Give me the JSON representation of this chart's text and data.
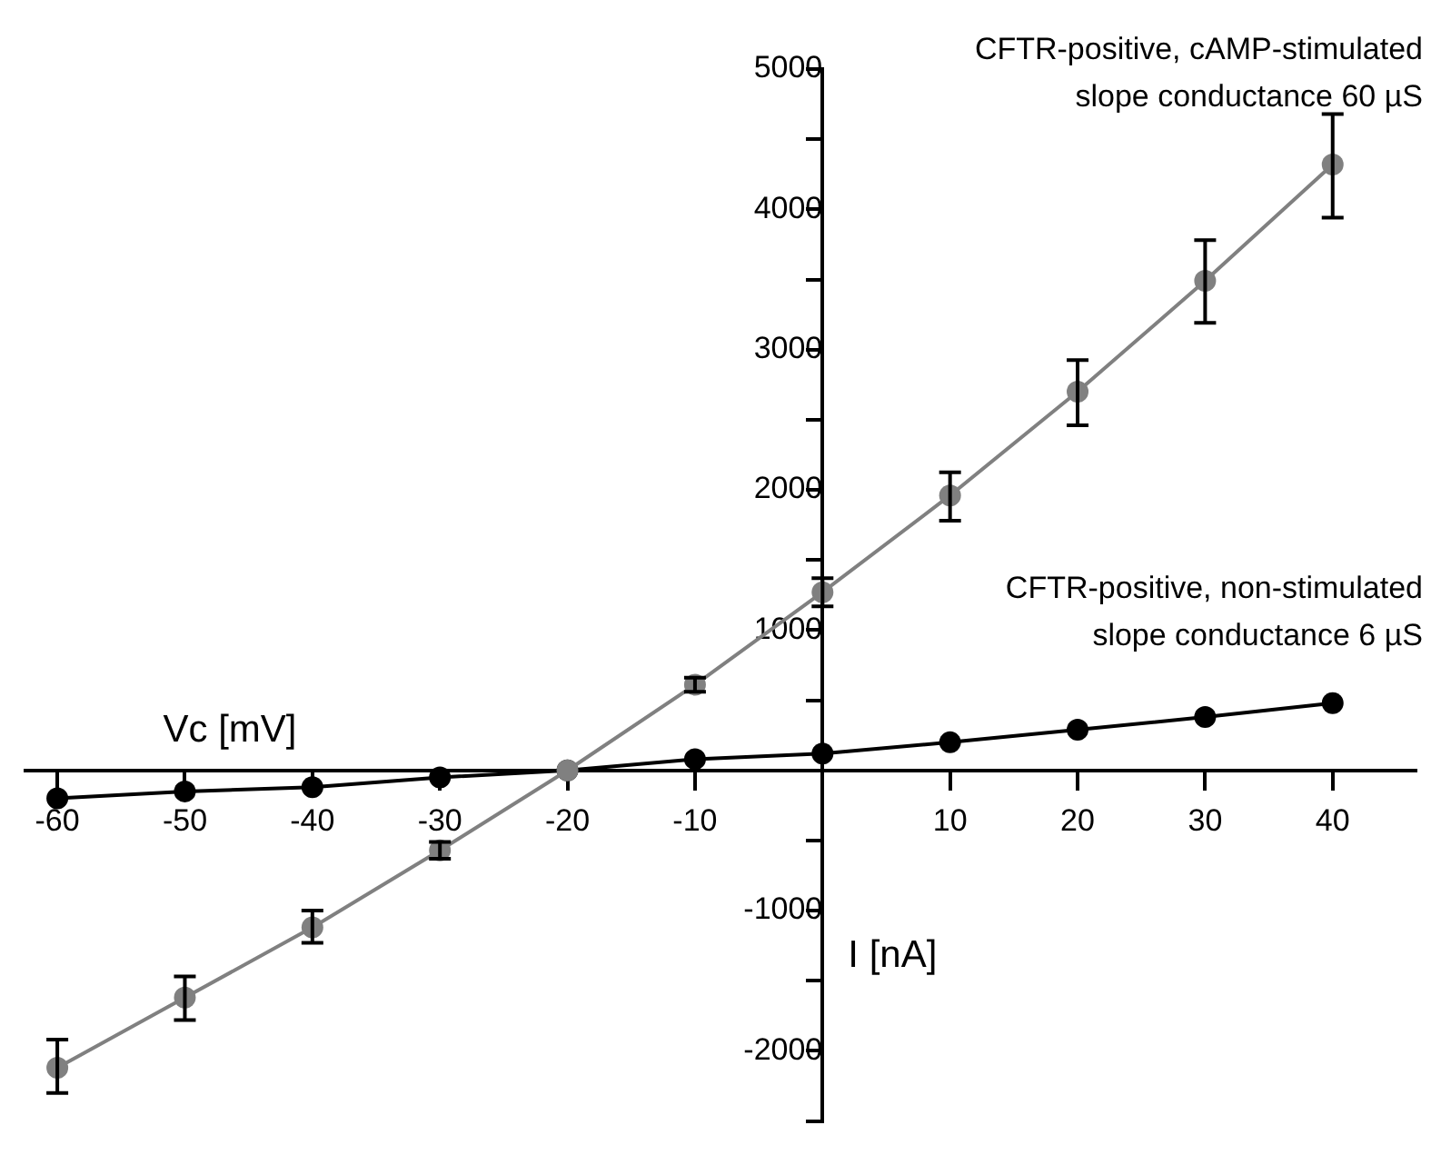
{
  "chart_data": {
    "type": "line",
    "xlabel": "Vc [mV]",
    "ylabel": "I [nA]",
    "x": [
      -60,
      -50,
      -40,
      -30,
      -20,
      -10,
      0,
      10,
      20,
      30,
      40
    ],
    "xlim": [
      -62.5,
      46.5
    ],
    "xticks": [
      -60,
      -50,
      -40,
      -30,
      -20,
      -10,
      10,
      20,
      30,
      40
    ],
    "ylim": [
      -2500,
      5000
    ],
    "yticks": [
      {
        "value": -2500,
        "label": null
      },
      -2000,
      {
        "value": -1500,
        "label": null
      },
      -1000,
      {
        "value": -500,
        "label": null
      },
      {
        "value": 0,
        "label": null
      },
      {
        "value": 500,
        "label": null
      },
      1000,
      {
        "value": 1500,
        "label": null
      },
      2000,
      {
        "value": 2500,
        "label": null
      },
      3000,
      {
        "value": 3500,
        "label": null
      },
      4000,
      {
        "value": 4500,
        "label": null
      },
      5000
    ],
    "series": [
      {
        "name": "CFTR-positive, cAMP-stimulated\nslope conductance 60 µS",
        "color": "#808080",
        "values": [
          -2120,
          -1620,
          -1120,
          -570,
          0,
          610,
          1270,
          1960,
          2700,
          3490,
          4320
        ],
        "errors": [
          [
            -2300,
            -1920
          ],
          [
            -1780,
            -1470
          ],
          [
            -1230,
            -1000
          ],
          [
            -630,
            -510
          ],
          null,
          [
            560,
            660
          ],
          [
            1170,
            1370
          ],
          [
            1780,
            2125
          ],
          [
            2460,
            2925
          ],
          [
            3190,
            3780
          ],
          [
            3940,
            4680
          ]
        ]
      },
      {
        "name": "CFTR-positive, non-stimulated\nslope conductance 6 µS",
        "color": "#000000",
        "values": [
          -200,
          -150,
          -120,
          -50,
          0,
          80,
          120,
          200,
          290,
          380,
          480
        ]
      }
    ],
    "marker": "circle",
    "line_style": "solid",
    "grid": false,
    "legend": false
  }
}
